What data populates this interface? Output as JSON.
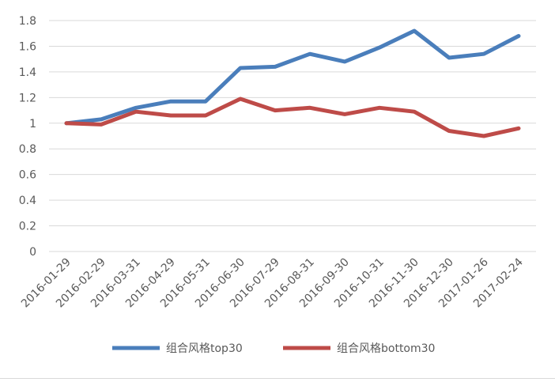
{
  "chart_data": {
    "type": "line",
    "categories": [
      "2016-01-29",
      "2016-02-29",
      "2016-03-31",
      "2016-04-29",
      "2016-05-31",
      "2016-06-30",
      "2016-07-29",
      "2016-08-31",
      "2016-09-30",
      "2016-10-31",
      "2016-11-30",
      "2016-12-30",
      "2017-01-26",
      "2017-02-24"
    ],
    "y_ticks": [
      "0",
      "0.2",
      "0.4",
      "0.6",
      "0.8",
      "1",
      "1.2",
      "1.4",
      "1.6",
      "1.8"
    ],
    "ylim": [
      0,
      1.8
    ],
    "grid": true,
    "legend_position": "bottom",
    "series": [
      {
        "name": "组合风格top30",
        "color": "#4a7ebb",
        "values": [
          1.0,
          1.03,
          1.12,
          1.17,
          1.17,
          1.43,
          1.44,
          1.54,
          1.48,
          1.59,
          1.72,
          1.51,
          1.54,
          1.68
        ]
      },
      {
        "name": "组合风格bottom30",
        "color": "#be4b48",
        "values": [
          1.0,
          0.99,
          1.09,
          1.06,
          1.06,
          1.19,
          1.1,
          1.12,
          1.07,
          1.12,
          1.09,
          0.94,
          0.9,
          0.96
        ]
      }
    ]
  }
}
